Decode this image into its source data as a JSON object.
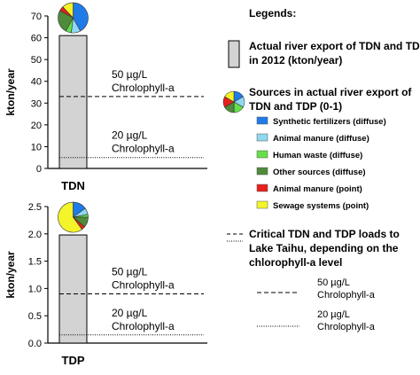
{
  "chart_data": [
    {
      "type": "bar",
      "xlabel": "TDN",
      "ylabel": "kton/year",
      "ylim": [
        0,
        70
      ],
      "yticks": [
        0,
        10,
        20,
        30,
        40,
        50,
        60,
        70
      ],
      "tick_labels": [
        "0",
        "10",
        "20",
        "30",
        "40",
        "50",
        "60",
        "70"
      ],
      "bar_value": 61,
      "critical_lines": [
        {
          "value": 33,
          "style": "dashed",
          "label_line1": "50 µg/L",
          "label_line2": "Chrolophyll-a"
        },
        {
          "value": 5,
          "style": "dotted",
          "label_line1": "20 µg/L",
          "label_line2": "Chrolophyll-a"
        }
      ],
      "pie": [
        0.42,
        0.1,
        0.06,
        0.25,
        0.05,
        0.12
      ]
    },
    {
      "type": "bar",
      "xlabel": "TDP",
      "ylabel": "kton/year",
      "ylim": [
        0,
        2.5
      ],
      "yticks": [
        0,
        0.5,
        1.0,
        1.5,
        2.0,
        2.5
      ],
      "tick_labels": [
        "0.0",
        "0.5",
        "1.0",
        "1.5",
        "2.0",
        "2.5"
      ],
      "bar_value": 1.98,
      "critical_lines": [
        {
          "value": 0.9,
          "style": "dashed",
          "label_line1": "50 µg/L",
          "label_line2": "Chrolophyll-a"
        },
        {
          "value": 0.15,
          "style": "dotted",
          "label_line1": "20 µg/L",
          "label_line2": "Chrolophyll-a"
        }
      ],
      "pie": [
        0.15,
        0.07,
        0.03,
        0.11,
        0.04,
        0.6
      ]
    }
  ],
  "legend": {
    "title": "Legends:",
    "bar_line1": "Actual river export of TDN and TDP",
    "bar_line2": "in 2012 (kton/year)",
    "pie_line1": "Sources in actual river export of",
    "pie_line2": "TDN and TDP (0-1)",
    "sources": [
      {
        "label": "Synthetic fertilizers (diffuse)",
        "color": "#1F7BE8"
      },
      {
        "label": "Animal manure (diffuse)",
        "color": "#8FD8F2"
      },
      {
        "label": "Human waste (diffuse)",
        "color": "#66E04A"
      },
      {
        "label": "Other sources (diffuse)",
        "color": "#4E8B3A"
      },
      {
        "label": "Animal manure (point)",
        "color": "#E8201B"
      },
      {
        "label": "Sewage systems (point)",
        "color": "#F4F42A"
      }
    ],
    "critical_line1": "Critical TDN and TDP loads to",
    "critical_line2": "Lake Taihu, depending on the",
    "critical_line3": "chlorophyll-a level",
    "dash_line1": "50 µg/L",
    "dash_line2": "Chrolophyll-a",
    "dot_line1": "20 µg/L",
    "dot_line2": "Chrolophyll-a"
  }
}
